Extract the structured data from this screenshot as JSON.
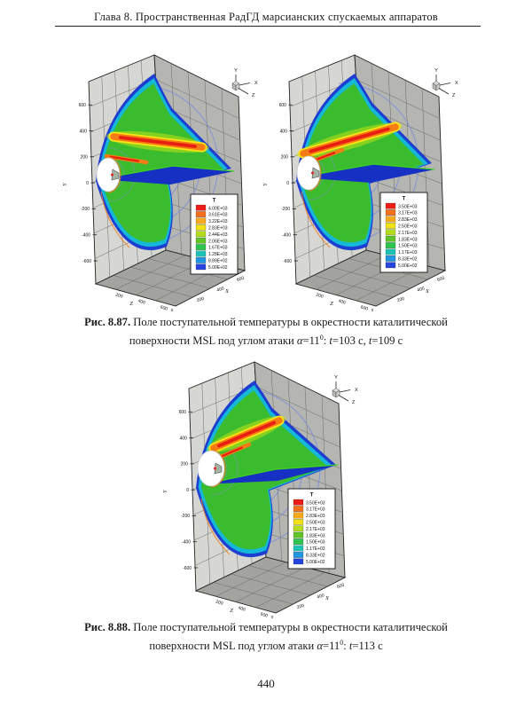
{
  "page": {
    "header": "Глава 8. Пространственная РадГД марсианских спускаемых аппаратов",
    "page_number": "440"
  },
  "legend_colors": [
    "#ee1c16",
    "#f4701b",
    "#f8a81b",
    "#f0e214",
    "#b4dc1c",
    "#60c426",
    "#2cc44e",
    "#1dc2b4",
    "#1e96e2",
    "#2645de"
  ],
  "figures": [
    {
      "id": "fig-8-87-left",
      "legend": {
        "title": "T",
        "values": [
          "4.00E+03",
          "3.61E+03",
          "3.22E+03",
          "2.83E+03",
          "2.44E+03",
          "2.06E+03",
          "1.67E+03",
          "1.28E+03",
          "8.89E+02",
          "5.00E+02"
        ]
      },
      "axes": {
        "y_label": "Y",
        "y_ticks": [
          "600",
          "400",
          "200",
          "0",
          "-200",
          "-400",
          "-600"
        ],
        "z_label": "Z",
        "z_ticks": [
          "200",
          "400",
          "600"
        ],
        "x_label": "X",
        "x_ticks": [
          "200",
          "400",
          "600"
        ],
        "origin_label": "0",
        "triad": [
          "Y",
          "X",
          "Z"
        ]
      }
    },
    {
      "id": "fig-8-87-right",
      "legend": {
        "title": "T",
        "values": [
          "3.50E+03",
          "3.17E+03",
          "2.83E+03",
          "2.50E+03",
          "2.17E+03",
          "1.83E+03",
          "1.50E+03",
          "1.17E+03",
          "8.33E+02",
          "5.00E+02"
        ]
      },
      "axes": {
        "y_label": "Y",
        "y_ticks": [
          "600",
          "400",
          "200",
          "0",
          "-200",
          "-400",
          "-600"
        ],
        "z_label": "Z",
        "z_ticks": [
          "200",
          "400",
          "600"
        ],
        "x_label": "X",
        "x_ticks": [
          "200",
          "400",
          "600"
        ],
        "origin_label": "0",
        "triad": [
          "Y",
          "X",
          "Z"
        ]
      }
    },
    {
      "id": "fig-8-88",
      "legend": {
        "title": "T",
        "values": [
          "3.50E+03",
          "3.17E+03",
          "2.83E+03",
          "2.50E+03",
          "2.17E+03",
          "1.83E+03",
          "1.50E+03",
          "1.17E+03",
          "8.33E+02",
          "5.00E+02"
        ]
      },
      "axes": {
        "y_label": "Y",
        "y_ticks": [
          "600",
          "400",
          "200",
          "0",
          "-200",
          "-400",
          "-600"
        ],
        "z_label": "Z",
        "z_ticks": [
          "200",
          "400",
          "600"
        ],
        "x_label": "X",
        "x_ticks": [
          "200",
          "400",
          "600"
        ],
        "origin_label": "0",
        "triad": [
          "Y",
          "X",
          "Z"
        ]
      }
    }
  ],
  "captions": [
    {
      "segments": [
        {
          "text": "Рис. 8.87. ",
          "bold": true
        },
        {
          "text": "Поле поступательной температуры в окрестности каталитической",
          "bold": false
        },
        {
          "br": true
        },
        {
          "text": "поверхности MSL под углом атаки ",
          "bold": false
        },
        {
          "text": "α",
          "italic": true
        },
        {
          "text": "=11",
          "bold": false
        },
        {
          "text": "0",
          "sup": true
        },
        {
          "text": ": ",
          "bold": false
        },
        {
          "text": "t",
          "italic": true
        },
        {
          "text": "=103 с, ",
          "bold": false
        },
        {
          "text": "t",
          "italic": true
        },
        {
          "text": "=109 с",
          "bold": false
        }
      ]
    },
    {
      "segments": [
        {
          "text": "Рис. 8.88. ",
          "bold": true
        },
        {
          "text": "Поле поступательной температуры в окрестности каталитической",
          "bold": false
        },
        {
          "br": true
        },
        {
          "text": "поверхности MSL под углом атаки ",
          "bold": false
        },
        {
          "text": "α",
          "italic": true
        },
        {
          "text": "=11",
          "bold": false
        },
        {
          "text": "0",
          "sup": true
        },
        {
          "text": ": ",
          "bold": false
        },
        {
          "text": "t",
          "italic": true
        },
        {
          "text": "=113 с",
          "bold": false
        }
      ]
    }
  ],
  "chart_data": [
    {
      "type": "heatmap",
      "variable": "T",
      "time_label": "t=103 с",
      "colorbar_levels": [
        4000,
        3610,
        3220,
        2830,
        2440,
        2060,
        1670,
        1280,
        889,
        500
      ],
      "colorbar_min": 500,
      "colorbar_max": 4000,
      "y_ticks": [
        600,
        400,
        200,
        0,
        -200,
        -400,
        -600
      ],
      "x_ticks": [
        200,
        400,
        600
      ],
      "z_ticks": [
        200,
        400,
        600
      ],
      "axis_labels": [
        "X",
        "Y",
        "Z"
      ]
    },
    {
      "type": "heatmap",
      "variable": "T",
      "time_label": "t=109 с",
      "colorbar_levels": [
        3500,
        3170,
        2830,
        2500,
        2170,
        1830,
        1500,
        1170,
        833,
        500
      ],
      "colorbar_min": 500,
      "colorbar_max": 3500,
      "y_ticks": [
        600,
        400,
        200,
        0,
        -200,
        -400,
        -600
      ],
      "x_ticks": [
        200,
        400,
        600
      ],
      "z_ticks": [
        200,
        400,
        600
      ],
      "axis_labels": [
        "X",
        "Y",
        "Z"
      ]
    },
    {
      "type": "heatmap",
      "variable": "T",
      "time_label": "t=113 с",
      "colorbar_levels": [
        3500,
        3170,
        2830,
        2500,
        2170,
        1830,
        1500,
        1170,
        833,
        500
      ],
      "colorbar_min": 500,
      "colorbar_max": 3500,
      "y_ticks": [
        600,
        400,
        200,
        0,
        -200,
        -400,
        -600
      ],
      "x_ticks": [
        200,
        400,
        600
      ],
      "z_ticks": [
        200,
        400,
        600
      ],
      "axis_labels": [
        "X",
        "Y",
        "Z"
      ]
    }
  ]
}
